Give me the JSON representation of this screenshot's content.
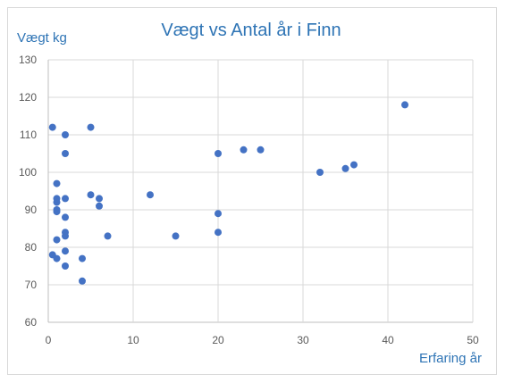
{
  "chart_data": {
    "type": "scatter",
    "title": "Vægt vs Antal år i Finn",
    "xlabel": "Erfaring år",
    "ylabel": "Vægt kg",
    "xlim": [
      0,
      50
    ],
    "ylim": [
      60,
      130
    ],
    "xticks": [
      0,
      10,
      20,
      30,
      40,
      50
    ],
    "yticks": [
      60,
      70,
      80,
      90,
      100,
      110,
      120,
      130
    ],
    "grid": true,
    "color": "#4472c4",
    "points": [
      {
        "x": 0.5,
        "y": 112
      },
      {
        "x": 0.5,
        "y": 78
      },
      {
        "x": 1,
        "y": 97
      },
      {
        "x": 1,
        "y": 93
      },
      {
        "x": 1,
        "y": 92
      },
      {
        "x": 1,
        "y": 90
      },
      {
        "x": 1,
        "y": 89.5
      },
      {
        "x": 1,
        "y": 82
      },
      {
        "x": 1,
        "y": 77
      },
      {
        "x": 2,
        "y": 110
      },
      {
        "x": 2,
        "y": 105
      },
      {
        "x": 2,
        "y": 93
      },
      {
        "x": 2,
        "y": 88
      },
      {
        "x": 2,
        "y": 84
      },
      {
        "x": 2,
        "y": 83
      },
      {
        "x": 2,
        "y": 79
      },
      {
        "x": 2,
        "y": 75
      },
      {
        "x": 4,
        "y": 77
      },
      {
        "x": 4,
        "y": 71
      },
      {
        "x": 5,
        "y": 112
      },
      {
        "x": 5,
        "y": 94
      },
      {
        "x": 6,
        "y": 93
      },
      {
        "x": 6,
        "y": 91
      },
      {
        "x": 7,
        "y": 83
      },
      {
        "x": 12,
        "y": 94
      },
      {
        "x": 15,
        "y": 83
      },
      {
        "x": 20,
        "y": 105
      },
      {
        "x": 20,
        "y": 89
      },
      {
        "x": 20,
        "y": 84
      },
      {
        "x": 23,
        "y": 106
      },
      {
        "x": 25,
        "y": 106
      },
      {
        "x": 32,
        "y": 100
      },
      {
        "x": 35,
        "y": 101
      },
      {
        "x": 36,
        "y": 102
      },
      {
        "x": 42,
        "y": 118
      }
    ]
  }
}
